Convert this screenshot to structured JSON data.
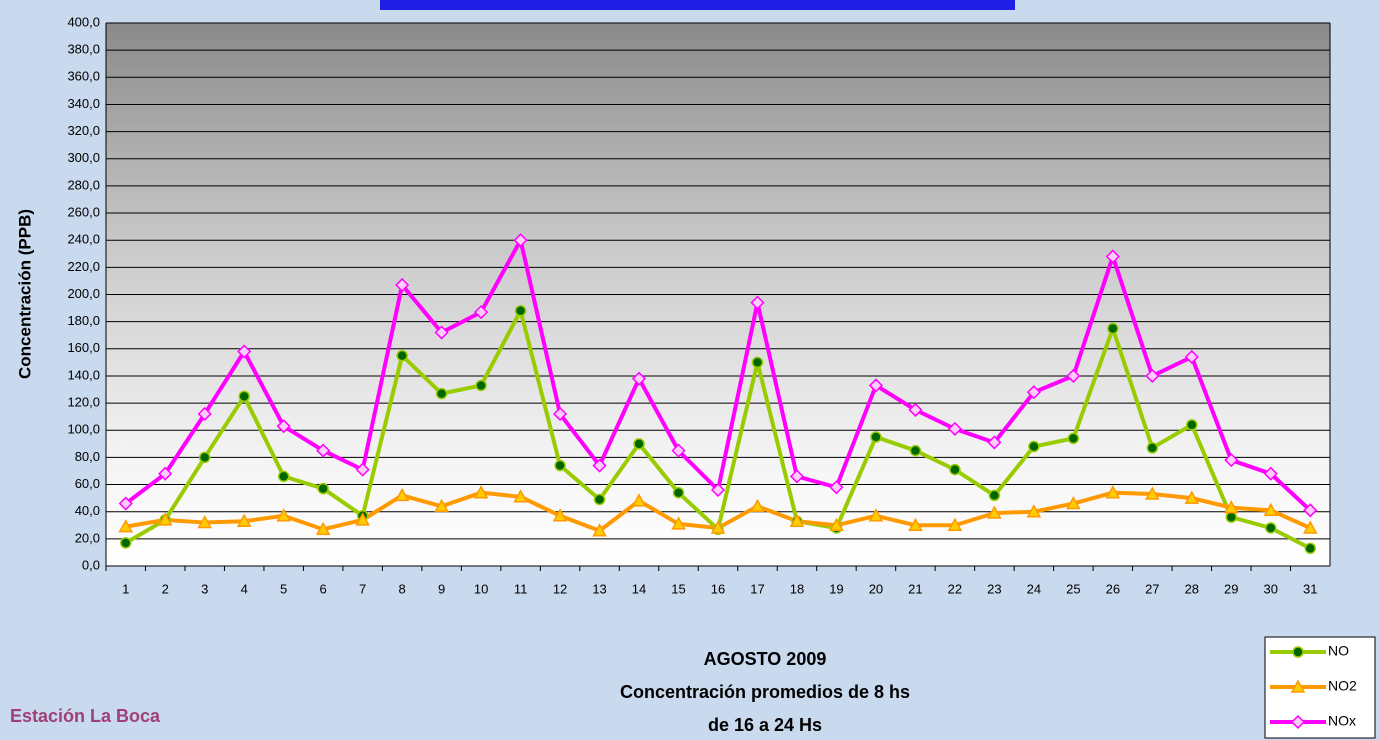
{
  "chart_data": {
    "type": "line",
    "ylabel": "Concentración   (PPB)",
    "subtitle_lines": [
      "AGOSTO 2009",
      "Concentración promedios de 8 hs",
      "de 16 a 24 Hs"
    ],
    "station": "Estación La Boca",
    "categories": [
      "1",
      "2",
      "3",
      "4",
      "5",
      "6",
      "7",
      "8",
      "9",
      "10",
      "11",
      "12",
      "13",
      "14",
      "15",
      "16",
      "17",
      "18",
      "19",
      "20",
      "21",
      "22",
      "23",
      "24",
      "25",
      "26",
      "27",
      "28",
      "29",
      "30",
      "31"
    ],
    "series": [
      {
        "name": "NO",
        "color": "#99cc00",
        "marker": "circle",
        "marker_color": "#006600",
        "values": [
          17,
          34,
          80,
          125,
          66,
          57,
          37,
          155,
          127,
          133,
          188,
          74,
          49,
          90,
          54,
          27,
          150,
          33,
          28,
          95,
          85,
          71,
          52,
          88,
          94,
          175,
          87,
          104,
          36,
          28,
          13
        ]
      },
      {
        "name": "NO2",
        "color": "#ff9900",
        "marker": "triangle",
        "marker_color": "#ffcc00",
        "values": [
          29,
          34,
          32,
          33,
          37,
          27,
          34,
          52,
          44,
          54,
          51,
          37,
          26,
          48,
          31,
          28,
          44,
          33,
          30,
          37,
          30,
          30,
          39,
          40,
          46,
          54,
          53,
          50,
          43,
          41,
          28
        ]
      },
      {
        "name": "NOx",
        "color": "#ff00ff",
        "marker": "diamond",
        "marker_color": "#ffccff",
        "values": [
          46,
          68,
          112,
          158,
          103,
          85,
          71,
          207,
          172,
          187,
          240,
          112,
          74,
          138,
          85,
          56,
          194,
          66,
          58,
          133,
          115,
          101,
          91,
          128,
          140,
          228,
          140,
          154,
          78,
          68,
          41
        ]
      }
    ],
    "ylim": [
      0,
      400
    ],
    "yticks": [
      {
        "value": 0,
        "label": "0,0"
      },
      {
        "value": 20,
        "label": "20,0"
      },
      {
        "value": 40,
        "label": "40,0"
      },
      {
        "value": 60,
        "label": "60,0"
      },
      {
        "value": 80,
        "label": "80,0"
      },
      {
        "value": 100,
        "label": "100,0"
      },
      {
        "value": 120,
        "label": "120,0"
      },
      {
        "value": 140,
        "label": "140,0"
      },
      {
        "value": 160,
        "label": "160,0"
      },
      {
        "value": 180,
        "label": "180,0"
      },
      {
        "value": 200,
        "label": "200,0"
      },
      {
        "value": 220,
        "label": "220,0"
      },
      {
        "value": 240,
        "label": "240,0"
      },
      {
        "value": 260,
        "label": "260,0"
      },
      {
        "value": 280,
        "label": "280,0"
      },
      {
        "value": 300,
        "label": "300,0"
      },
      {
        "value": 320,
        "label": "320,0"
      },
      {
        "value": 340,
        "label": "340,0"
      },
      {
        "value": 360,
        "label": "360,0"
      },
      {
        "value": 380,
        "label": "380,0"
      },
      {
        "value": 400,
        "label": "400,0"
      }
    ],
    "grid": true,
    "legend": "bottom-right"
  }
}
